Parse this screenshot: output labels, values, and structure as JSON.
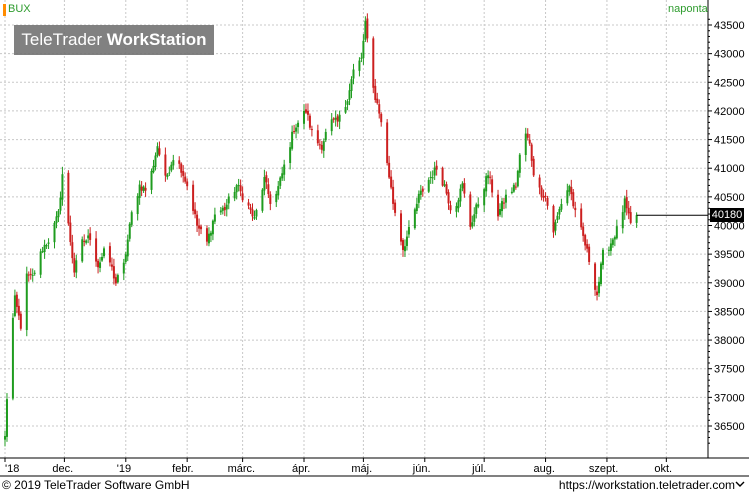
{
  "header": {
    "symbol": "BUX",
    "period": "naponta",
    "logo_light": "TeleTrader ",
    "logo_bold": "WorkStation"
  },
  "last_value_label": "40180",
  "footer": {
    "copyright": "© 2019 TeleTrader Software GmbH",
    "url": "https://workstation.teletrader.com"
  },
  "colors": {
    "up": "#1f9c1f",
    "down": "#cc1f1f",
    "grid": "#c8c8c8",
    "symbol_marker": "#ff8c00",
    "header_text": "#2e9c2e"
  },
  "chart_data": {
    "type": "candlestick",
    "xlabels": [
      "'18",
      "dec.",
      "'19",
      "febr.",
      "márc.",
      "ápr.",
      "máj.",
      "jún.",
      "júl.",
      "aug.",
      "szept.",
      "okt."
    ],
    "xlabel_dates": [
      "2018-11-01",
      "2018-12-01",
      "2019-01-01",
      "2019-02-01",
      "2019-03-01",
      "2019-04-01",
      "2019-05-01",
      "2019-06-01",
      "2019-07-01",
      "2019-08-01",
      "2019-09-01",
      "2019-10-01"
    ],
    "yticks": [
      36500,
      37000,
      37500,
      38000,
      38500,
      39000,
      39500,
      40000,
      40500,
      41000,
      41500,
      42000,
      42500,
      43000,
      43500
    ],
    "ylim": [
      36200,
      43600
    ],
    "xlim": [
      "2018-11-01",
      "2019-10-18"
    ],
    "last_value": 40180,
    "close_path": [
      [
        "2018-11-01",
        36300
      ],
      [
        "2018-11-03",
        37700
      ],
      [
        "2018-11-06",
        38700
      ],
      [
        "2018-11-09",
        38250
      ],
      [
        "2018-11-12",
        39100
      ],
      [
        "2018-11-15",
        39100
      ],
      [
        "2018-11-20",
        39600
      ],
      [
        "2018-11-24",
        39800
      ],
      [
        "2018-11-28",
        40200
      ],
      [
        "2018-11-30",
        40900
      ],
      [
        "2018-12-03",
        40000
      ],
      [
        "2018-12-06",
        39200
      ],
      [
        "2018-12-10",
        39700
      ],
      [
        "2018-12-14",
        39800
      ],
      [
        "2018-12-18",
        39300
      ],
      [
        "2018-12-22",
        39600
      ],
      [
        "2018-12-27",
        39000
      ],
      [
        "2018-12-31",
        39300
      ],
      [
        "2019-01-04",
        40200
      ],
      [
        "2019-01-08",
        40700
      ],
      [
        "2019-01-12",
        40600
      ],
      [
        "2019-01-17",
        41400
      ],
      [
        "2019-01-21",
        40800
      ],
      [
        "2019-01-25",
        41200
      ],
      [
        "2019-01-29",
        41000
      ],
      [
        "2019-02-02",
        40600
      ],
      [
        "2019-02-06",
        40000
      ],
      [
        "2019-02-11",
        39700
      ],
      [
        "2019-02-15",
        40200
      ],
      [
        "2019-02-20",
        40300
      ],
      [
        "2019-02-26",
        40700
      ],
      [
        "2019-03-03",
        40400
      ],
      [
        "2019-03-07",
        40100
      ],
      [
        "2019-03-12",
        40800
      ],
      [
        "2019-03-16",
        40300
      ],
      [
        "2019-03-21",
        40900
      ],
      [
        "2019-03-27",
        41700
      ],
      [
        "2019-04-02",
        42000
      ],
      [
        "2019-04-06",
        41500
      ],
      [
        "2019-04-10",
        41400
      ],
      [
        "2019-04-14",
        41800
      ],
      [
        "2019-04-18",
        41800
      ],
      [
        "2019-04-22",
        42100
      ],
      [
        "2019-04-26",
        42700
      ],
      [
        "2019-04-30",
        42900
      ],
      [
        "2019-05-02",
        43550
      ],
      [
        "2019-05-05",
        42500
      ],
      [
        "2019-05-09",
        42000
      ],
      [
        "2019-05-13",
        41100
      ],
      [
        "2019-05-16",
        40400
      ],
      [
        "2019-05-21",
        39600
      ],
      [
        "2019-05-25",
        40000
      ],
      [
        "2019-05-29",
        40500
      ],
      [
        "2019-06-03",
        40800
      ],
      [
        "2019-06-07",
        41000
      ],
      [
        "2019-06-11",
        40700
      ],
      [
        "2019-06-15",
        40200
      ],
      [
        "2019-06-20",
        40700
      ],
      [
        "2019-06-24",
        40000
      ],
      [
        "2019-06-29",
        40500
      ],
      [
        "2019-07-03",
        40900
      ],
      [
        "2019-07-08",
        40200
      ],
      [
        "2019-07-12",
        40500
      ],
      [
        "2019-07-17",
        40700
      ],
      [
        "2019-07-21",
        41700
      ],
      [
        "2019-07-24",
        41400
      ],
      [
        "2019-07-27",
        40700
      ],
      [
        "2019-08-01",
        40500
      ],
      [
        "2019-08-05",
        39900
      ],
      [
        "2019-08-09",
        40400
      ],
      [
        "2019-08-13",
        40700
      ],
      [
        "2019-08-16",
        40200
      ],
      [
        "2019-08-20",
        39800
      ],
      [
        "2019-08-23",
        39400
      ],
      [
        "2019-08-27",
        38800
      ],
      [
        "2019-08-30",
        39500
      ],
      [
        "2019-09-03",
        39700
      ],
      [
        "2019-09-07",
        40000
      ],
      [
        "2019-09-10",
        40400
      ],
      [
        "2019-09-13",
        40000
      ],
      [
        "2019-09-16",
        40180
      ]
    ]
  }
}
